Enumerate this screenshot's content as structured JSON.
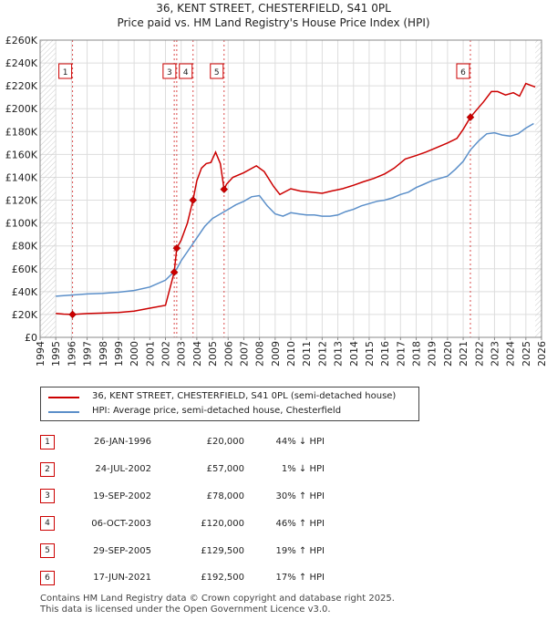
{
  "title_line1": "36, KENT STREET, CHESTERFIELD, S41 0PL",
  "title_line2": "Price paid vs. HM Land Registry's House Price Index (HPI)",
  "legend": {
    "property": "36, KENT STREET, CHESTERFIELD, S41 0PL (semi-detached house)",
    "hpi": "HPI: Average price, semi-detached house, Chesterfield"
  },
  "sales": [
    {
      "num": "1",
      "date": "26-JAN-1996",
      "price": "£20,000",
      "hpi": "44% ↓ HPI"
    },
    {
      "num": "2",
      "date": "24-JUL-2002",
      "price": "£57,000",
      "hpi": "1% ↓ HPI"
    },
    {
      "num": "3",
      "date": "19-SEP-2002",
      "price": "£78,000",
      "hpi": "30% ↑ HPI"
    },
    {
      "num": "4",
      "date": "06-OCT-2003",
      "price": "£120,000",
      "hpi": "46% ↑ HPI"
    },
    {
      "num": "5",
      "date": "29-SEP-2005",
      "price": "£129,500",
      "hpi": "19% ↑ HPI"
    },
    {
      "num": "6",
      "date": "17-JUN-2021",
      "price": "£192,500",
      "hpi": "17% ↑ HPI"
    }
  ],
  "footer_line1": "Contains HM Land Registry data © Crown copyright and database right 2025.",
  "footer_line2": "This data is licensed under the Open Government Licence v3.0.",
  "colors": {
    "property": "#cc0000",
    "hpi": "#5b8fc9",
    "grid": "#dddddd",
    "vline": "#cc0000"
  },
  "chart_data": {
    "type": "line",
    "title": "36, KENT STREET, CHESTERFIELD, S41 0PL",
    "subtitle": "Price paid vs. HM Land Registry's House Price Index (HPI)",
    "xlabel": "",
    "ylabel": "",
    "xlim": [
      1994,
      2026
    ],
    "ylim": [
      0,
      260000
    ],
    "x_ticks": [
      1994,
      1995,
      1996,
      1997,
      1998,
      1999,
      2000,
      2001,
      2002,
      2003,
      2004,
      2005,
      2006,
      2007,
      2008,
      2009,
      2010,
      2011,
      2012,
      2013,
      2014,
      2015,
      2016,
      2017,
      2018,
      2019,
      2020,
      2021,
      2022,
      2023,
      2024,
      2025,
      2026
    ],
    "y_ticks": [
      0,
      20000,
      40000,
      60000,
      80000,
      100000,
      120000,
      140000,
      160000,
      180000,
      200000,
      220000,
      240000,
      260000
    ],
    "y_tick_labels": [
      "£0",
      "£20K",
      "£40K",
      "£60K",
      "£80K",
      "£100K",
      "£120K",
      "£140K",
      "£160K",
      "£180K",
      "£200K",
      "£220K",
      "£240K",
      "£260K"
    ],
    "grid": true,
    "legend_position": "below",
    "series": [
      {
        "name": "36, KENT STREET, CHESTERFIELD, S41 0PL (semi-detached house)",
        "x": [
          1995.0,
          1995.5,
          1996.07,
          1997,
          1998,
          1999,
          2000,
          2001,
          2002,
          2002.56,
          2002.72,
          2003.0,
          2003.4,
          2003.76,
          2004.0,
          2004.3,
          2004.6,
          2004.9,
          2005.2,
          2005.5,
          2005.74,
          2005.9,
          2006.3,
          2007.0,
          2007.8,
          2008.3,
          2008.9,
          2009.3,
          2010.0,
          2010.6,
          2011.3,
          2012.0,
          2012.6,
          2013.3,
          2014.0,
          2014.6,
          2015.3,
          2016.0,
          2016.6,
          2017.3,
          2018.0,
          2018.6,
          2019.3,
          2020.0,
          2020.6,
          2021.0,
          2021.46,
          2021.8,
          2022.3,
          2022.8,
          2023.2,
          2023.7,
          2024.2,
          2024.6,
          2025.0,
          2025.4,
          2025.6
        ],
        "y": [
          21000,
          20300,
          20000,
          20800,
          21200,
          21800,
          23000,
          25500,
          28000,
          57000,
          78000,
          85000,
          100000,
          120000,
          137000,
          148000,
          152000,
          153000,
          162000,
          152000,
          129500,
          134000,
          140000,
          144000,
          150000,
          145000,
          132000,
          125000,
          130000,
          128000,
          127000,
          126000,
          128000,
          130000,
          133000,
          136000,
          139000,
          143000,
          148000,
          156000,
          159000,
          162000,
          166000,
          170000,
          174000,
          182000,
          192500,
          198000,
          206000,
          215000,
          215000,
          212000,
          214000,
          211000,
          222000,
          220000,
          219000
        ]
      },
      {
        "name": "HPI: Average price, semi-detached house, Chesterfield",
        "x": [
          1995.0,
          1995.5,
          1996.0,
          1997,
          1998,
          1999,
          2000,
          2001,
          2002,
          2002.56,
          2002.72,
          2003.0,
          2003.5,
          2004.0,
          2004.5,
          2005.0,
          2005.5,
          2006.0,
          2006.5,
          2007.0,
          2007.5,
          2008.0,
          2008.5,
          2009.0,
          2009.5,
          2010.0,
          2010.5,
          2011.0,
          2011.5,
          2012.0,
          2012.5,
          2013.0,
          2013.5,
          2014.0,
          2014.5,
          2015.0,
          2015.5,
          2016.0,
          2016.5,
          2017.0,
          2017.5,
          2018.0,
          2018.5,
          2019.0,
          2019.5,
          2020.0,
          2020.5,
          2021.0,
          2021.46,
          2022.0,
          2022.5,
          2023.0,
          2023.5,
          2024.0,
          2024.5,
          2025.0,
          2025.5
        ],
        "y": [
          36000,
          36500,
          37000,
          38000,
          38500,
          39500,
          41000,
          44000,
          50000,
          57500,
          60000,
          67000,
          77000,
          87000,
          97000,
          104000,
          108000,
          112000,
          116000,
          119000,
          123000,
          124000,
          115000,
          108000,
          106000,
          109000,
          108000,
          107000,
          107000,
          106000,
          106000,
          107000,
          110000,
          112000,
          115000,
          117000,
          119000,
          120000,
          122000,
          125000,
          127000,
          131000,
          134000,
          137000,
          139000,
          141000,
          147000,
          154000,
          164000,
          172000,
          178000,
          179000,
          177000,
          176000,
          178000,
          183000,
          187000
        ]
      }
    ],
    "sales_markers": [
      {
        "label": "1",
        "x": 1996.07,
        "y": 20000
      },
      {
        "label": "2",
        "x": 2002.56,
        "y": 57000
      },
      {
        "label": "3",
        "x": 2002.72,
        "y": 78000
      },
      {
        "label": "4",
        "x": 2003.76,
        "y": 120000
      },
      {
        "label": "5",
        "x": 2005.74,
        "y": 129500
      },
      {
        "label": "6",
        "x": 2021.46,
        "y": 192500
      }
    ],
    "box_markers": [
      {
        "label": "1",
        "x": 1996.07
      },
      {
        "label": "3",
        "x": 2002.72
      },
      {
        "label": "4",
        "x": 2003.76
      },
      {
        "label": "5",
        "x": 2005.74
      },
      {
        "label": "6",
        "x": 2021.46
      }
    ]
  }
}
